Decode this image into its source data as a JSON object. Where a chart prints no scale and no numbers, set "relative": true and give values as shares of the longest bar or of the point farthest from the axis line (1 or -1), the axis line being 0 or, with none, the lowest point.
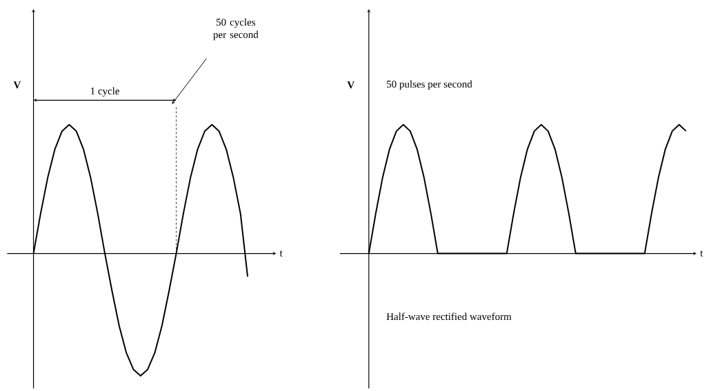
{
  "chart_data": [
    {
      "type": "line",
      "relative": true,
      "xlabel": "t",
      "ylabel": "V",
      "color": "#000000",
      "categories": [
        null,
        null,
        null,
        null,
        null,
        null,
        null,
        null,
        null,
        null,
        null,
        null,
        null,
        null,
        null,
        null,
        null,
        null,
        null,
        null,
        null,
        null,
        null,
        null,
        null,
        null,
        null,
        null,
        null,
        null,
        null
      ],
      "values": [
        0,
        0.31,
        0.59,
        0.81,
        0.95,
        1,
        0.95,
        0.81,
        0.59,
        0.31,
        0,
        -0.29,
        -0.56,
        -0.77,
        -0.9,
        -0.95,
        -0.9,
        -0.77,
        -0.56,
        -0.29,
        0,
        0.31,
        0.59,
        0.81,
        0.95,
        1,
        0.95,
        0.81,
        0.59,
        0.31,
        -0.18
      ],
      "ref_lines": [
        {
          "axis": "x",
          "label": "50 cycles per second",
          "line_style": "dashed"
        }
      ],
      "annotations": [
        "1 cycle"
      ]
    },
    {
      "type": "line",
      "relative": true,
      "xlabel": "t",
      "ylabel": "V",
      "color": "#000000",
      "categories": [
        null,
        null,
        null,
        null,
        null,
        null,
        null,
        null,
        null,
        null,
        null,
        null,
        null,
        null,
        null,
        null,
        null,
        null,
        null,
        null,
        null,
        null,
        null,
        null,
        null,
        null,
        null,
        null,
        null,
        null,
        null,
        null,
        null,
        null,
        null,
        null,
        null,
        null,
        null,
        null,
        null,
        null,
        null,
        null,
        null,
        null,
        null
      ],
      "values": [
        0,
        0.31,
        0.59,
        0.81,
        0.95,
        1,
        0.95,
        0.81,
        0.59,
        0.31,
        0,
        0,
        0,
        0,
        0,
        0,
        0,
        0,
        0,
        0,
        0,
        0.31,
        0.59,
        0.81,
        0.95,
        1,
        0.95,
        0.81,
        0.59,
        0.31,
        0,
        0,
        0,
        0,
        0,
        0,
        0,
        0,
        0,
        0,
        0,
        0.31,
        0.59,
        0.81,
        0.95,
        1,
        0.95
      ],
      "annotations": [
        "50 pulses per second",
        "Half-wave rectified waveform"
      ]
    }
  ]
}
